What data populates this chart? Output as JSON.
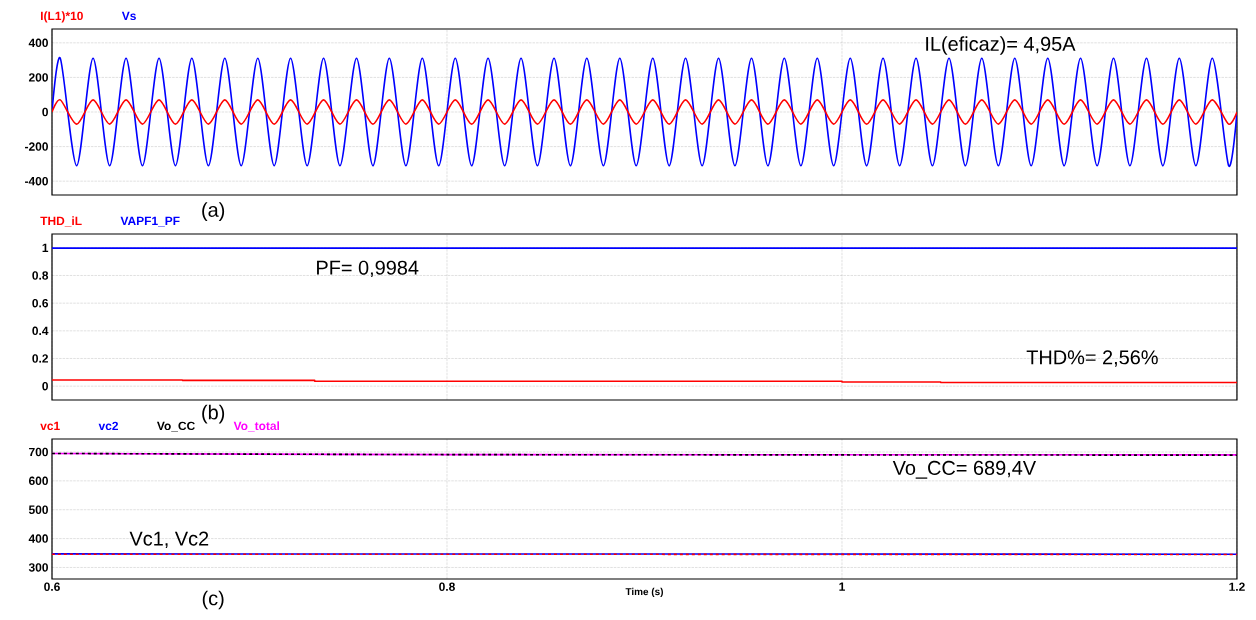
{
  "chart_data": [
    {
      "type": "line",
      "xlim": [
        0.6,
        1.2
      ],
      "ylim": [
        -480,
        480
      ],
      "xticks": [
        0.6,
        0.8,
        1,
        1.2
      ],
      "yticks": [
        -400,
        -200,
        0,
        200,
        400
      ],
      "grid": true,
      "legend": "top left",
      "tick_labels": "y",
      "x": [
        0.6,
        0.6042,
        0.6125,
        0.6208,
        0.6292,
        0.6375,
        0.6458,
        0.6542,
        0.6625,
        0.6708,
        0.6792,
        0.6875,
        0.6958,
        0.7042,
        0.7125,
        0.7208,
        0.7292,
        0.7375,
        0.7458,
        0.7542,
        0.7625,
        0.7708,
        0.7792,
        0.7875,
        0.7958,
        0.8042,
        0.8125,
        0.8208,
        0.8292,
        0.8375,
        0.8458,
        0.8542,
        0.8625,
        0.8708,
        0.8792,
        0.8875,
        0.8958,
        0.9042,
        0.9125,
        0.9208,
        0.9292,
        0.9375,
        0.9458,
        0.9542,
        0.9625,
        0.9708,
        0.9792,
        0.9875,
        0.9958,
        1.0042,
        1.0125,
        1.0208,
        1.0292,
        1.0375,
        1.0458,
        1.0542,
        1.0625,
        1.0708,
        1.0792,
        1.0875,
        1.0958,
        1.1042,
        1.1125,
        1.1208,
        1.1292,
        1.1375,
        1.1458,
        1.1542,
        1.1625,
        1.1708,
        1.1792,
        1.1875,
        1.1958,
        1.2
      ],
      "series": [
        {
          "name": "I(L1)*10",
          "color": "#ff0000",
          "line_style": "solid",
          "values": [
            0,
            70,
            -70,
            70,
            -70,
            70,
            -70,
            70,
            -70,
            70,
            -70,
            70,
            -70,
            70,
            -70,
            70,
            -70,
            70,
            -70,
            70,
            -70,
            70,
            -70,
            70,
            -70,
            70,
            -70,
            70,
            -70,
            70,
            -70,
            70,
            -70,
            70,
            -70,
            70,
            -70,
            70,
            -70,
            70,
            -70,
            70,
            -70,
            70,
            -70,
            70,
            -70,
            70,
            -70,
            70,
            -70,
            70,
            -70,
            70,
            -70,
            70,
            -70,
            70,
            -70,
            70,
            -70,
            70,
            -70,
            70,
            -70,
            70,
            -70,
            70,
            -70,
            70,
            -70,
            70,
            -70,
            0
          ]
        },
        {
          "name": "Vs",
          "color": "#0000ff",
          "line_style": "solid",
          "values": [
            0,
            311,
            -311,
            311,
            -311,
            311,
            -311,
            311,
            -311,
            311,
            -311,
            311,
            -311,
            311,
            -311,
            311,
            -311,
            311,
            -311,
            311,
            -311,
            311,
            -311,
            311,
            -311,
            311,
            -311,
            311,
            -311,
            311,
            -311,
            311,
            -311,
            311,
            -311,
            311,
            -311,
            311,
            -311,
            311,
            -311,
            311,
            -311,
            311,
            -311,
            311,
            -311,
            311,
            -311,
            311,
            -311,
            311,
            -311,
            311,
            -311,
            311,
            -311,
            311,
            -311,
            311,
            -311,
            311,
            -311,
            311,
            -311,
            311,
            -311,
            311,
            -311,
            311,
            -311,
            311,
            -311,
            0
          ]
        }
      ],
      "annotations": [
        "IL(eficaz)= 4,95A",
        "(a)"
      ]
    },
    {
      "type": "line",
      "xlim": [
        0.6,
        1.2
      ],
      "ylim": [
        -0.1,
        1.1
      ],
      "xticks": [
        0.6,
        0.8,
        1,
        1.2
      ],
      "yticks": [
        0,
        0.2,
        0.4,
        0.6,
        0.8,
        1
      ],
      "grid": true,
      "legend": "top left",
      "tick_labels": "y",
      "series": [
        {
          "name": "THD_iL",
          "color": "#ff0000",
          "type": "step",
          "line_style": "solid",
          "x": [
            0.6,
            0.666,
            0.733,
            1.0,
            1.05,
            1.2
          ],
          "values": [
            0.045,
            0.042,
            0.035,
            0.03,
            0.026,
            0.026
          ]
        },
        {
          "name": "VAPF1_PF",
          "color": "#0000ff",
          "line_style": "solid",
          "x": [
            0.6,
            1.2
          ],
          "values": [
            0.998,
            0.998
          ]
        }
      ],
      "annotations": [
        "PF= 0,9984",
        "THD%= 2,56%",
        "(b)"
      ]
    },
    {
      "type": "line",
      "xlim": [
        0.6,
        1.2
      ],
      "ylim": [
        260,
        745
      ],
      "xticks": [
        0.6,
        0.8,
        1,
        1.2
      ],
      "yticks": [
        300,
        400,
        500,
        600,
        700
      ],
      "grid": true,
      "legend": "top left",
      "xlabel": "Time (s)",
      "series": [
        {
          "name": "vc1",
          "color": "#ff0000",
          "line_style": "dashed",
          "x": [
            0.6,
            1.2
          ],
          "values": [
            346,
            345
          ]
        },
        {
          "name": "vc2",
          "color": "#0000ff",
          "line_style": "solid",
          "x": [
            0.6,
            1.2
          ],
          "values": [
            347,
            346
          ]
        },
        {
          "name": "Vo_CC",
          "color": "#000000",
          "line_style": "dashed",
          "x": [
            0.6,
            0.8,
            1.2
          ],
          "values": [
            695,
            691,
            689
          ]
        },
        {
          "name": "Vo_total",
          "color": "#ff00ff",
          "line_style": "solid",
          "x": [
            0.6,
            0.8,
            1.2
          ],
          "values": [
            695,
            691,
            690
          ]
        }
      ],
      "annotations": [
        "Vo_CC= 689,4V",
        "Vc1, Vc2",
        "(c)"
      ]
    }
  ]
}
